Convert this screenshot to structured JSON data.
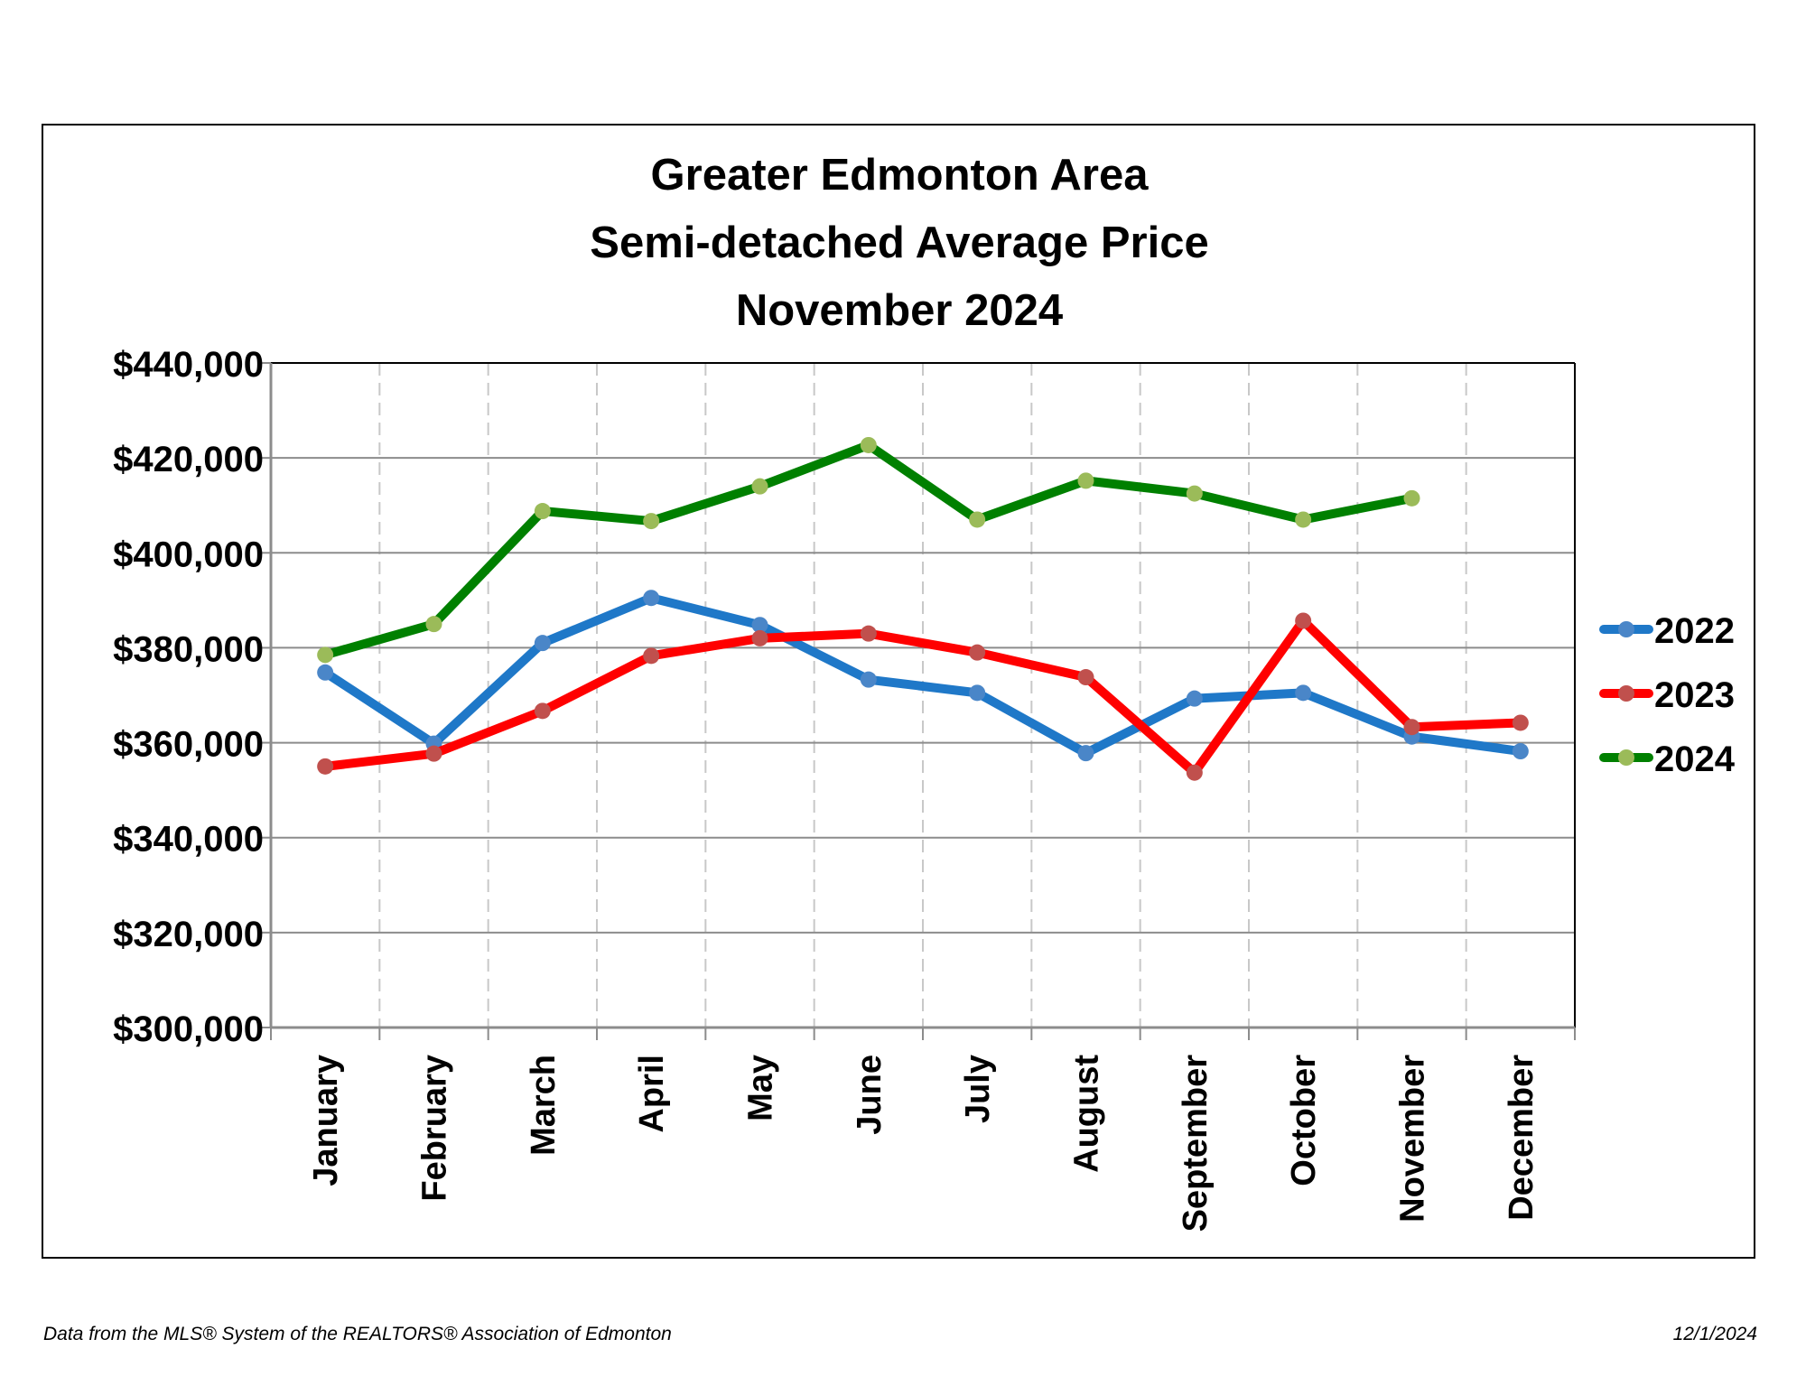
{
  "chart_data": {
    "type": "line",
    "title": [
      "Greater Edmonton Area",
      "Semi-detached Average Price",
      "November 2024"
    ],
    "categories": [
      "January",
      "February",
      "March",
      "April",
      "May",
      "June",
      "July",
      "August",
      "September",
      "October",
      "November",
      "December"
    ],
    "ylim": [
      300000,
      440000
    ],
    "yticks": [
      300000,
      320000,
      340000,
      360000,
      380000,
      400000,
      420000,
      440000
    ],
    "ytick_labels": [
      "$300,000",
      "$320,000",
      "$340,000",
      "$360,000",
      "$380,000",
      "$400,000",
      "$420,000",
      "$440,000"
    ],
    "grid": {
      "horizontal": "solid",
      "vertical": "dashed"
    },
    "legend_position": "right",
    "series": [
      {
        "name": "2022",
        "line_color": "#1f78c8",
        "marker_color": "#4a86c8",
        "values": [
          374800,
          359800,
          381000,
          390500,
          384800,
          373300,
          370500,
          357800,
          369300,
          370500,
          361300,
          358200
        ]
      },
      {
        "name": "2023",
        "line_color": "#ff0000",
        "marker_color": "#c0504d",
        "values": [
          355000,
          357700,
          366700,
          378300,
          382000,
          383000,
          379000,
          373800,
          353700,
          385700,
          363300,
          364200
        ]
      },
      {
        "name": "2024",
        "line_color": "#008000",
        "marker_color": "#9bbb59",
        "values": [
          378500,
          385000,
          408800,
          406700,
          414000,
          422700,
          407000,
          415200,
          412500,
          407000,
          411500,
          null
        ]
      }
    ]
  },
  "footer": {
    "source": "Data from the MLS® System of the REALTORS® Association of Edmonton",
    "date": "12/1/2024"
  }
}
